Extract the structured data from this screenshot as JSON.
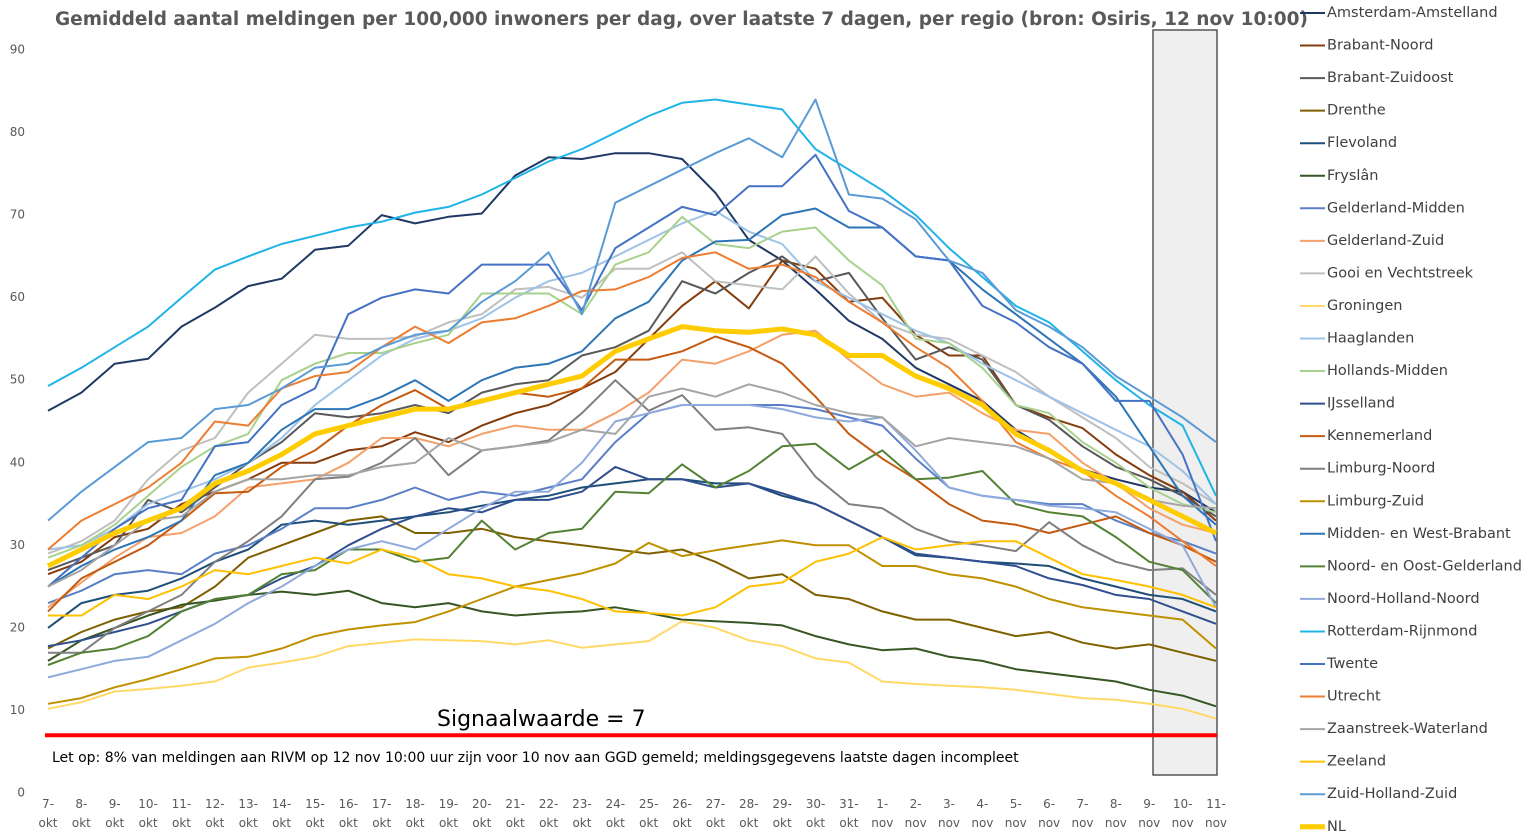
{
  "chart_data": {
    "type": "line",
    "title": "Gemiddeld aantal meldingen per 100,000 inwoners per dag, over laatste 7 dagen, per regio (bron: Osiris, 12 nov 10:00)",
    "categories": [
      "7- okt",
      "8- okt",
      "9- okt",
      "10- okt",
      "11- okt",
      "12- okt",
      "13- okt",
      "14- okt",
      "15- okt",
      "16- okt",
      "17- okt",
      "18- okt",
      "19- okt",
      "20- okt",
      "21- okt",
      "22- okt",
      "23- okt",
      "24- okt",
      "25- okt",
      "26- okt",
      "27- okt",
      "28- okt",
      "29- okt",
      "30- okt",
      "31- okt",
      "1- nov",
      "2- nov",
      "3- nov",
      "4- nov",
      "5- nov",
      "6- nov",
      "7- nov",
      "8- nov",
      "9- nov",
      "10- nov",
      "11- nov"
    ],
    "ylim": [
      0,
      90
    ],
    "yticks": [
      0,
      10,
      20,
      30,
      40,
      50,
      60,
      70,
      80,
      90
    ],
    "line_width": 2,
    "signal": {
      "label": "Signaalwaarde = 7",
      "value": 7,
      "color": "#ff0000"
    },
    "note": "Let op: 8% van meldingen aan RIVM op 12 nov 10:00 uur zijn voor 10 nov aan GGD gemeld; meldingsgegevens laatste dagen incompleet",
    "series": [
      {
        "name": "Amsterdam-Amstelland",
        "color": "#1f3864",
        "values": [
          46.3,
          48.5,
          52,
          52.6,
          56.5,
          58.8,
          61.4,
          62.3,
          65.8,
          66.3,
          70,
          69,
          69.8,
          70.2,
          74.8,
          77,
          76.8,
          77.5,
          77.5,
          76.8,
          72.7,
          67,
          64.5,
          61,
          57.2,
          55,
          51.5,
          49.5,
          47.5,
          44,
          41.5,
          39.2,
          38,
          37,
          36.5,
          34
        ]
      },
      {
        "name": "Brabant-Noord",
        "color": "#843c0c",
        "values": [
          26.5,
          28,
          31,
          32,
          35,
          36.5,
          38,
          40,
          40,
          41.5,
          42,
          43.7,
          42.5,
          44.5,
          46,
          47,
          49,
          51,
          55,
          59,
          62,
          58.7,
          64.5,
          63.5,
          59.5,
          60,
          55.5,
          53,
          53,
          47,
          45.5,
          44.2,
          41,
          38.5,
          36.5,
          33
        ]
      },
      {
        "name": "Brabant-Zuidoost",
        "color": "#595959",
        "values": [
          27,
          28.5,
          30,
          35.5,
          34,
          37,
          40,
          42.5,
          46,
          45.5,
          46,
          47,
          46,
          48.5,
          49.5,
          50,
          53,
          54,
          56,
          62,
          60.5,
          63,
          65,
          62,
          63,
          57.5,
          52.5,
          54,
          52.5,
          47,
          45.2,
          42,
          39.5,
          38,
          36,
          33.5
        ]
      },
      {
        "name": "Drenthe",
        "color": "#7f6000",
        "values": [
          17.5,
          19.5,
          21,
          22,
          22.5,
          25,
          28.5,
          30,
          31.5,
          33,
          33.5,
          31.5,
          31.5,
          32,
          31,
          30.5,
          30,
          29.5,
          29,
          29.5,
          28,
          26,
          26.5,
          24,
          23.5,
          22,
          21,
          21,
          20,
          19,
          19.5,
          18.2,
          17.5,
          18,
          17,
          16
        ]
      },
      {
        "name": "Flevoland",
        "color": "#1f4e79",
        "values": [
          20,
          23,
          24,
          24.5,
          26,
          28,
          29.5,
          32.5,
          33,
          32.5,
          33,
          33.5,
          34,
          34.8,
          35.5,
          36,
          37,
          37.5,
          38,
          38,
          37.5,
          37.5,
          36,
          35,
          33,
          31,
          28.8,
          28.5,
          28,
          27.8,
          27.5,
          26,
          25,
          24,
          23.5,
          22
        ]
      },
      {
        "name": "Fryslân",
        "color": "#375623",
        "values": [
          16,
          18.5,
          20,
          21.5,
          22.8,
          23.3,
          24,
          24.4,
          24,
          24.5,
          23,
          22.5,
          23,
          22,
          21.5,
          21.8,
          22,
          22.5,
          21.8,
          21,
          20.8,
          20.6,
          20.3,
          19,
          18,
          17.3,
          17.5,
          16.5,
          16,
          15,
          14.5,
          14,
          13.5,
          12.5,
          11.8,
          10.5
        ]
      },
      {
        "name": "Gelderland-Midden",
        "color": "#5b7fc7",
        "values": [
          23,
          24.5,
          26.5,
          27,
          26.5,
          29,
          30,
          32,
          34.5,
          34.5,
          35.5,
          37,
          35.5,
          36.5,
          36,
          37,
          38,
          42.5,
          46,
          47,
          47,
          47,
          47,
          46.5,
          45.5,
          44.5,
          40.5,
          37,
          36,
          35.5,
          35,
          35,
          33,
          31.5,
          30.5,
          29
        ]
      },
      {
        "name": "Gelderland-Zuid",
        "color": "#f4a06a",
        "values": [
          22.5,
          25.5,
          28.5,
          31,
          31.5,
          33.5,
          37,
          37.5,
          38,
          40,
          43,
          43,
          42,
          43.5,
          44.5,
          44,
          44,
          46,
          48.5,
          52.5,
          52,
          53.5,
          55.5,
          56,
          52.5,
          49.5,
          48,
          48.5,
          46,
          44,
          43.5,
          40,
          37.5,
          34.5,
          32.5,
          31.5
        ]
      },
      {
        "name": "Gooi en Vechtstreek",
        "color": "#bfbfbf",
        "values": [
          29,
          30.5,
          33,
          38,
          41.5,
          43,
          48.5,
          52,
          55.5,
          55,
          55,
          55.3,
          57,
          58,
          61,
          61.3,
          60,
          63.5,
          63.5,
          65.5,
          62,
          61.5,
          61,
          65,
          60.5,
          57,
          55.5,
          55,
          53,
          51,
          48,
          45.5,
          43,
          39.5,
          37.5,
          35
        ]
      },
      {
        "name": "Groningen",
        "color": "#ffd966",
        "values": [
          10.2,
          11,
          12.3,
          12.6,
          13,
          13.5,
          15.2,
          15.8,
          16.5,
          17.8,
          18.2,
          18.6,
          18.5,
          18.4,
          18,
          18.5,
          17.6,
          18,
          18.4,
          20.8,
          20,
          18.5,
          17.8,
          16.3,
          15.8,
          13.5,
          13.2,
          13,
          12.8,
          12.5,
          12,
          11.5,
          11.3,
          10.8,
          10.2,
          9
        ]
      },
      {
        "name": "Haaglanden",
        "color": "#9dc3e6",
        "values": [
          29.5,
          30,
          32,
          35,
          36.5,
          38,
          40,
          43,
          47,
          50,
          53,
          55,
          56,
          57.5,
          60,
          62,
          63,
          65,
          67,
          69,
          70.5,
          68,
          66.5,
          62,
          60,
          58,
          56,
          54.5,
          52,
          50,
          48,
          46,
          44,
          42,
          39,
          35
        ]
      },
      {
        "name": "Hollands-Midden",
        "color": "#a9d18e",
        "values": [
          28.5,
          30,
          32.5,
          36,
          39.5,
          42,
          43.5,
          50,
          52,
          53.3,
          53.3,
          54.5,
          55.5,
          60.5,
          60.5,
          60.5,
          58,
          64,
          65.5,
          69.8,
          66.5,
          66,
          68,
          68.5,
          64.5,
          61.5,
          55,
          54.5,
          51.5,
          47,
          46,
          42.5,
          40,
          37,
          35,
          34
        ]
      },
      {
        "name": "IJsselland",
        "color": "#2f4f8f",
        "values": [
          17.8,
          18.5,
          19.5,
          20.5,
          22,
          23.5,
          24,
          26,
          27.5,
          30,
          32,
          33.5,
          34.5,
          34,
          35.5,
          35.5,
          36.5,
          39.5,
          38,
          38,
          37,
          37.5,
          36.3,
          35,
          33,
          31,
          29,
          28.5,
          28,
          27.5,
          26,
          25.2,
          24,
          23.5,
          22,
          20.5
        ]
      },
      {
        "name": "Kennemerland",
        "color": "#c55a11",
        "values": [
          22,
          26,
          28,
          30,
          33,
          36.3,
          36.5,
          39.5,
          41.5,
          44.5,
          47,
          48.8,
          46.5,
          47.5,
          48.5,
          48,
          49,
          52.5,
          52.5,
          53.5,
          55.3,
          54,
          52,
          48,
          43.5,
          40.5,
          38,
          35,
          33,
          32.5,
          31.5,
          32.5,
          33.5,
          31.5,
          30,
          28
        ]
      },
      {
        "name": "Limburg-Noord",
        "color": "#7f7f7f",
        "values": [
          17,
          17,
          20,
          22,
          24,
          28,
          30.5,
          33.5,
          38,
          38.3,
          40,
          43,
          38.5,
          41.5,
          42,
          42.7,
          46,
          50,
          46.3,
          48.2,
          44,
          44.3,
          43.5,
          38.3,
          35,
          34.5,
          32,
          30.5,
          30,
          29.3,
          32.8,
          30,
          28,
          27,
          27.2,
          24
        ]
      },
      {
        "name": "Limburg-Zuid",
        "color": "#bf9000",
        "values": [
          10.8,
          11.5,
          12.8,
          13.8,
          15,
          16.3,
          16.5,
          17.5,
          19,
          19.8,
          20.3,
          20.7,
          22,
          23.5,
          25,
          25.8,
          26.6,
          27.8,
          30.3,
          28.7,
          29.4,
          30,
          30.6,
          30,
          30,
          27.5,
          27.5,
          26.5,
          26,
          25,
          23.5,
          22.5,
          22,
          21.5,
          21,
          17.5
        ]
      },
      {
        "name": "Midden- en West-Brabant",
        "color": "#2e75b6",
        "values": [
          25,
          27.5,
          29.5,
          31,
          33,
          38.5,
          40,
          44,
          46.5,
          46.5,
          48,
          50,
          47.5,
          50,
          51.5,
          52,
          53.5,
          57.5,
          59.5,
          64.5,
          66.8,
          67,
          70,
          70.8,
          68.5,
          68.5,
          65,
          64.5,
          61,
          58,
          55,
          52,
          48,
          42,
          36,
          32.5
        ]
      },
      {
        "name": "Noord- en Oost-Gelderland",
        "color": "#548235",
        "values": [
          15.5,
          17,
          17.5,
          19,
          22,
          23.5,
          24,
          26.5,
          27,
          29.5,
          29.5,
          28,
          28.5,
          33,
          29.5,
          31.5,
          32,
          36.5,
          36.3,
          39.8,
          37,
          39,
          42,
          42.3,
          39.2,
          41.5,
          38,
          38.2,
          39,
          35,
          34,
          33.5,
          31,
          28,
          27,
          23
        ]
      },
      {
        "name": "Noord-Holland-Noord",
        "color": "#8faadc",
        "values": [
          14,
          15,
          16,
          16.5,
          18.5,
          20.5,
          23,
          25,
          27.5,
          29.5,
          30.5,
          29.5,
          32,
          34.5,
          36.5,
          36.5,
          40,
          45,
          46,
          47,
          47,
          47,
          46.5,
          45.5,
          45,
          45.5,
          41.5,
          37,
          36,
          35.5,
          34.8,
          34.5,
          34,
          32,
          30,
          22.5
        ]
      },
      {
        "name": "Rotterdam-Rijnmond",
        "color": "#1fb4e8",
        "values": [
          49.3,
          51.5,
          54,
          56.5,
          60,
          63.4,
          65,
          66.5,
          67.5,
          68.5,
          69.2,
          70.3,
          71,
          72.5,
          74.5,
          76.5,
          78,
          80,
          82,
          83.6,
          84,
          83.4,
          82.8,
          78,
          75.5,
          73,
          70,
          66,
          62.5,
          59,
          57,
          53.5,
          50,
          47,
          44.5,
          36
        ]
      },
      {
        "name": "Twente",
        "color": "#4472c4",
        "values": [
          25,
          28.5,
          32,
          34.5,
          35.5,
          42,
          42.5,
          47,
          49,
          58,
          60,
          61,
          60.5,
          64,
          64,
          64,
          58.5,
          66,
          68.5,
          71,
          70,
          73.5,
          73.5,
          77.3,
          70.5,
          68.5,
          65,
          64.5,
          59,
          57,
          54,
          52,
          47.5,
          47.5,
          41,
          30.5
        ]
      },
      {
        "name": "Utrecht",
        "color": "#ed7d31",
        "values": [
          29.5,
          33,
          35,
          37,
          40,
          45,
          44.5,
          49,
          50.5,
          51,
          54,
          56.5,
          54.5,
          57,
          57.5,
          59,
          60.8,
          61,
          62.5,
          64.8,
          65.5,
          63.5,
          64,
          62.5,
          59.5,
          57,
          54,
          51.5,
          47.5,
          42.5,
          40.5,
          39,
          36,
          33.5,
          30.5,
          27.5
        ]
      },
      {
        "name": "Zaanstreek-Waterland",
        "color": "#a5a5a5",
        "values": [
          25,
          27,
          30,
          33,
          33.5,
          36.5,
          38,
          38,
          38.5,
          38.5,
          39.5,
          40,
          43,
          41.5,
          42,
          42.5,
          44,
          43.5,
          48,
          49,
          48,
          49.5,
          48.5,
          47,
          46,
          45.5,
          42,
          43,
          42.5,
          42,
          40.5,
          38,
          37.5,
          35.5,
          34.8,
          34.5
        ]
      },
      {
        "name": "Zeeland",
        "color": "#ffc000",
        "values": [
          21.5,
          21.5,
          24,
          23.5,
          25,
          27,
          26.5,
          27.5,
          28.5,
          27.8,
          29.5,
          28.5,
          26.5,
          26,
          25,
          24.5,
          23.5,
          22,
          21.8,
          21.5,
          22.5,
          25,
          25.5,
          28,
          29,
          31,
          29.5,
          30,
          30.5,
          30.5,
          28.5,
          26.5,
          25.8,
          25,
          24,
          22.5
        ]
      },
      {
        "name": "Zuid-Holland-Zuid",
        "color": "#5b9bd5",
        "values": [
          33,
          36.5,
          39.5,
          42.5,
          43,
          46.5,
          47,
          49,
          51.5,
          52,
          54,
          55.5,
          56,
          59.5,
          62,
          65.5,
          58,
          71.5,
          73.5,
          75.5,
          77.5,
          79.3,
          77,
          84,
          72.5,
          72,
          69.5,
          64.5,
          63,
          58.5,
          56.5,
          54,
          50.5,
          48,
          45.5,
          42.5
        ]
      },
      {
        "name": "NL",
        "color": "#ffcc00",
        "width": 5,
        "values": [
          27.5,
          29.5,
          31.5,
          33,
          34.5,
          37.5,
          39,
          41,
          43.5,
          44.5,
          45.5,
          46.5,
          46.5,
          47.5,
          48.5,
          49.5,
          50.5,
          53.5,
          55,
          56.5,
          56,
          55.8,
          56.2,
          55.5,
          53,
          53,
          50.5,
          49,
          47,
          43.5,
          41.5,
          39,
          37.5,
          35.5,
          33.5,
          31.5
        ]
      }
    ]
  }
}
